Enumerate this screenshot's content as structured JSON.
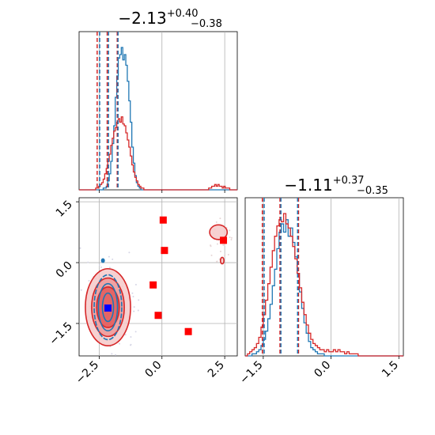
{
  "chart_data": [
    {
      "type": "histogram",
      "panel": "marginal-param-1",
      "title": {
        "value": "−2.13",
        "upper": "+0.40",
        "lower": "−0.38"
      },
      "xlim": [
        -3.3,
        3.0
      ],
      "xticks": [
        -2.5,
        0.0,
        2.5
      ],
      "grid": true,
      "colors": {
        "blue": "#1f77b4",
        "red": "#d62728"
      },
      "quantiles": {
        "blue": [
          -2.48,
          -2.13,
          -1.75
        ],
        "red": [
          -2.58,
          -2.18,
          -1.78
        ]
      },
      "series": [
        {
          "name": "",
          "color": "#1f77b4",
          "bin_start": -3.3,
          "bin_width": 0.06,
          "counts": [
            0,
            0,
            0,
            0,
            0,
            0,
            0,
            0,
            0,
            0,
            0,
            0,
            0,
            0,
            0,
            0,
            1,
            1,
            2,
            5,
            9,
            16,
            26,
            36,
            52,
            64,
            74,
            76,
            80,
            73,
            76,
            70,
            61,
            50,
            38,
            24,
            15,
            8,
            4,
            2,
            1,
            0,
            0,
            0,
            0,
            0,
            0,
            0,
            0,
            0,
            0,
            0,
            0,
            0,
            0,
            0,
            0,
            0,
            0,
            0,
            0,
            0,
            0,
            0,
            0,
            0,
            0,
            0,
            0,
            0,
            0,
            0,
            0,
            0,
            0,
            0,
            0,
            0,
            0,
            0,
            0,
            0,
            0,
            0,
            0,
            0,
            0,
            0,
            0,
            0,
            0,
            0,
            0,
            0,
            0,
            0,
            0,
            0,
            0,
            0,
            0,
            0,
            0,
            0,
            0
          ]
        },
        {
          "name": "",
          "color": "#d62728",
          "bin_start": -3.3,
          "bin_width": 0.06,
          "counts": [
            0,
            0,
            0,
            0,
            0,
            0,
            0,
            0,
            0,
            0,
            0,
            1,
            1,
            2,
            3,
            4,
            6,
            9,
            12,
            16,
            20,
            25,
            29,
            33,
            35,
            38,
            40,
            38,
            41,
            37,
            36,
            32,
            28,
            24,
            19,
            14,
            10,
            7,
            5,
            3,
            2,
            1,
            1,
            0,
            0,
            0,
            0,
            0,
            0,
            0,
            0,
            0,
            0,
            0,
            0,
            0,
            0,
            0,
            0,
            0,
            0,
            0,
            0,
            0,
            0,
            0,
            0,
            0,
            0,
            0,
            0,
            0,
            0,
            0,
            0,
            0,
            0,
            0,
            0,
            0,
            0,
            0,
            0,
            0,
            0,
            0,
            1,
            1,
            2,
            2,
            3,
            2,
            3,
            2,
            2,
            1,
            2,
            1,
            1,
            1,
            0,
            0,
            0,
            0,
            0
          ]
        }
      ]
    },
    {
      "type": "histogram",
      "panel": "marginal-param-2",
      "title": {
        "value": "−1.11",
        "upper": "+0.37",
        "lower": "−0.35"
      },
      "xlim": [
        -1.9,
        1.6
      ],
      "xticks": [
        -1.5,
        0.0,
        1.5
      ],
      "grid": true,
      "colors": {
        "blue": "#1f77b4",
        "red": "#d62728"
      },
      "quantiles": {
        "blue": [
          -1.48,
          -1.11,
          -0.74
        ],
        "red": [
          -1.52,
          -1.13,
          -0.72
        ]
      },
      "series": [
        {
          "name": "",
          "color": "#1f77b4",
          "bin_start": -1.9,
          "bin_width": 0.05,
          "counts": [
            0,
            0,
            0,
            1,
            1,
            2,
            3,
            5,
            8,
            12,
            18,
            25,
            34,
            42,
            52,
            60,
            64,
            60,
            66,
            58,
            62,
            55,
            48,
            40,
            31,
            23,
            16,
            11,
            7,
            4,
            3,
            2,
            1,
            1,
            1,
            0,
            0,
            0,
            0,
            0,
            0,
            0,
            0,
            0,
            0,
            0,
            0,
            0,
            0,
            0,
            0,
            0,
            0,
            0,
            0,
            0,
            0,
            0,
            0,
            0,
            0,
            0,
            0,
            0,
            0,
            0,
            0,
            0,
            0,
            0
          ]
        },
        {
          "name": "",
          "color": "#d62728",
          "bin_start": -1.9,
          "bin_width": 0.05,
          "counts": [
            0,
            1,
            2,
            3,
            4,
            6,
            9,
            14,
            20,
            27,
            35,
            43,
            51,
            58,
            63,
            66,
            65,
            69,
            64,
            62,
            58,
            53,
            47,
            40,
            33,
            26,
            20,
            15,
            11,
            8,
            6,
            5,
            4,
            3,
            3,
            2,
            3,
            2,
            2,
            3,
            2,
            3,
            2,
            2,
            1,
            2,
            1,
            1,
            1,
            1,
            0,
            0,
            0,
            0,
            0,
            0,
            0,
            0,
            0,
            0,
            0,
            0,
            0,
            0,
            0,
            0,
            0,
            0,
            0,
            0
          ]
        }
      ]
    },
    {
      "type": "scatter",
      "panel": "joint-param-1-param-2",
      "xlim": [
        -3.3,
        3.0
      ],
      "ylim": [
        -2.3,
        1.6
      ],
      "xticks": [
        -2.5,
        0.0,
        2.5
      ],
      "yticks": [
        -1.5,
        0.0,
        1.5
      ],
      "grid": true,
      "colors": {
        "blue": "#1f77b4",
        "red": "#d62728",
        "marker-red": "#ff0000",
        "marker-blue": "#0000ff"
      },
      "red_points": [
        {
          "x": 0.05,
          "y": 1.05
        },
        {
          "x": 0.1,
          "y": 0.3
        },
        {
          "x": -0.35,
          "y": -0.55
        },
        {
          "x": -0.15,
          "y": -1.3
        },
        {
          "x": 1.05,
          "y": -1.7
        },
        {
          "x": 2.45,
          "y": 0.55
        }
      ],
      "blue_points": [
        {
          "x": -2.15,
          "y": -1.12
        }
      ],
      "contours_red": [
        {
          "cx": -2.15,
          "cy": -1.1,
          "rx": 0.9,
          "ry": 0.95
        },
        {
          "cx": -2.15,
          "cy": -1.1,
          "rx": 0.65,
          "ry": 0.72
        },
        {
          "cx": -2.15,
          "cy": -1.1,
          "rx": 0.45,
          "ry": 0.5
        },
        {
          "cx": 2.25,
          "cy": 0.75,
          "rx": 0.35,
          "ry": 0.18
        },
        {
          "cx": 2.4,
          "cy": 0.05,
          "rx": 0.07,
          "ry": 0.08
        }
      ],
      "contours_blue": [
        {
          "cx": -2.15,
          "cy": -1.1,
          "rx": 0.55,
          "ry": 0.8
        },
        {
          "cx": -2.15,
          "cy": -1.1,
          "rx": 0.38,
          "ry": 0.58
        },
        {
          "cx": -2.15,
          "cy": -1.1,
          "rx": 0.22,
          "ry": 0.35
        }
      ]
    }
  ]
}
